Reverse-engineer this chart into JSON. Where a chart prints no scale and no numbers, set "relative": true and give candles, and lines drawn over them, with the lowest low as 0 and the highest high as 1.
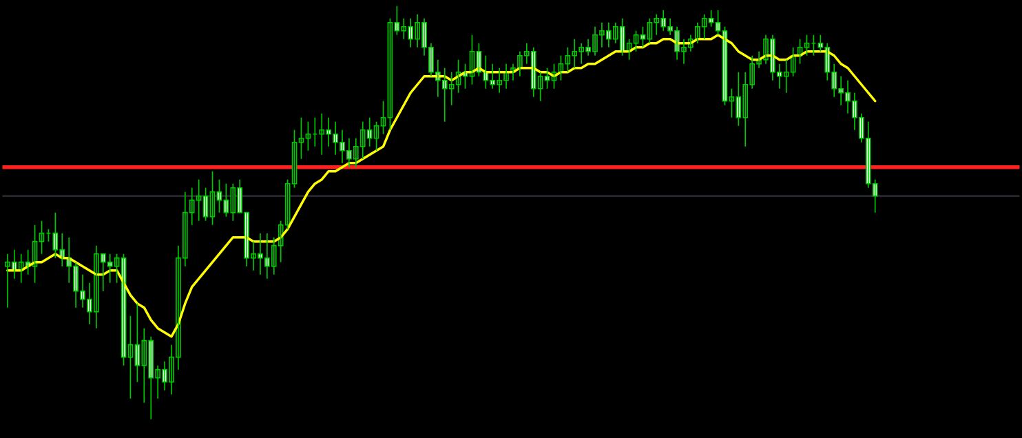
{
  "chart_data": {
    "type": "candlestick",
    "relative": true,
    "categories": [
      null,
      null,
      null,
      null,
      null,
      null,
      null,
      null,
      null,
      null,
      null,
      null,
      null,
      null,
      null,
      null,
      null,
      null,
      null,
      null,
      null,
      null,
      null,
      null,
      null,
      null,
      null,
      null,
      null,
      null,
      null,
      null,
      null,
      null,
      null,
      null,
      null,
      null,
      null,
      null,
      null,
      null,
      null,
      null,
      null,
      null,
      null,
      null,
      null,
      null,
      null,
      null,
      null,
      null,
      null,
      null,
      null,
      null,
      null,
      null,
      null,
      null,
      null,
      null,
      null,
      null,
      null,
      null,
      null,
      null,
      null,
      null,
      null,
      null,
      null,
      null,
      null,
      null,
      null,
      null,
      null,
      null,
      null,
      null,
      null,
      null,
      null,
      null,
      null,
      null,
      null,
      null,
      null,
      null,
      null,
      null,
      null,
      null,
      null,
      null,
      null,
      null,
      null,
      null,
      null,
      null,
      null,
      null,
      null,
      null,
      null,
      null,
      null,
      null,
      null,
      null,
      null,
      null,
      null,
      null,
      null,
      null,
      null,
      null,
      null,
      null,
      null,
      null
    ],
    "ohlc": [
      [
        0.37,
        0.4,
        0.27,
        0.38
      ],
      [
        0.38,
        0.41,
        0.34,
        0.36
      ],
      [
        0.36,
        0.4,
        0.33,
        0.38
      ],
      [
        0.38,
        0.41,
        0.35,
        0.37
      ],
      [
        0.37,
        0.47,
        0.33,
        0.43
      ],
      [
        0.43,
        0.48,
        0.4,
        0.45
      ],
      [
        0.45,
        0.46,
        0.43,
        0.45
      ],
      [
        0.45,
        0.5,
        0.39,
        0.41
      ],
      [
        0.41,
        0.45,
        0.37,
        0.39
      ],
      [
        0.39,
        0.44,
        0.33,
        0.37
      ],
      [
        0.37,
        0.38,
        0.27,
        0.31
      ],
      [
        0.31,
        0.35,
        0.27,
        0.29
      ],
      [
        0.29,
        0.33,
        0.23,
        0.26
      ],
      [
        0.26,
        0.42,
        0.22,
        0.4
      ],
      [
        0.4,
        0.4,
        0.31,
        0.38
      ],
      [
        0.38,
        0.4,
        0.33,
        0.37
      ],
      [
        0.37,
        0.4,
        0.33,
        0.39
      ],
      [
        0.39,
        0.4,
        0.13,
        0.15
      ],
      [
        0.15,
        0.25,
        0.05,
        0.18
      ],
      [
        0.18,
        0.28,
        0.09,
        0.13
      ],
      [
        0.13,
        0.22,
        0.04,
        0.19
      ],
      [
        0.19,
        0.2,
        0.0,
        0.1
      ],
      [
        0.1,
        0.13,
        0.05,
        0.12
      ],
      [
        0.12,
        0.14,
        0.07,
        0.09
      ],
      [
        0.09,
        0.18,
        0.06,
        0.15
      ],
      [
        0.15,
        0.42,
        0.12,
        0.39
      ],
      [
        0.39,
        0.55,
        0.37,
        0.5
      ],
      [
        0.5,
        0.56,
        0.47,
        0.53
      ],
      [
        0.53,
        0.58,
        0.48,
        0.54
      ],
      [
        0.54,
        0.56,
        0.48,
        0.49
      ],
      [
        0.49,
        0.6,
        0.47,
        0.55
      ],
      [
        0.55,
        0.58,
        0.5,
        0.53
      ],
      [
        0.53,
        0.57,
        0.49,
        0.5
      ],
      [
        0.5,
        0.57,
        0.48,
        0.56
      ],
      [
        0.56,
        0.58,
        0.5,
        0.5
      ],
      [
        0.5,
        0.5,
        0.37,
        0.39
      ],
      [
        0.39,
        0.43,
        0.36,
        0.4
      ],
      [
        0.4,
        0.45,
        0.35,
        0.39
      ],
      [
        0.39,
        0.45,
        0.34,
        0.37
      ],
      [
        0.37,
        0.44,
        0.35,
        0.42
      ],
      [
        0.42,
        0.48,
        0.38,
        0.47
      ],
      [
        0.47,
        0.58,
        0.46,
        0.57
      ],
      [
        0.57,
        0.7,
        0.56,
        0.67
      ],
      [
        0.67,
        0.73,
        0.63,
        0.68
      ],
      [
        0.68,
        0.72,
        0.65,
        0.69
      ],
      [
        0.69,
        0.73,
        0.66,
        0.69
      ],
      [
        0.69,
        0.74,
        0.64,
        0.7
      ],
      [
        0.7,
        0.73,
        0.66,
        0.69
      ],
      [
        0.69,
        0.72,
        0.64,
        0.67
      ],
      [
        0.67,
        0.7,
        0.62,
        0.65
      ],
      [
        0.65,
        0.68,
        0.61,
        0.63
      ],
      [
        0.63,
        0.68,
        0.61,
        0.66
      ],
      [
        0.66,
        0.72,
        0.63,
        0.7
      ],
      [
        0.7,
        0.73,
        0.66,
        0.68
      ],
      [
        0.68,
        0.72,
        0.65,
        0.71
      ],
      [
        0.71,
        0.77,
        0.69,
        0.73
      ],
      [
        0.73,
        0.97,
        0.7,
        0.96
      ],
      [
        0.96,
        1.0,
        0.93,
        0.94
      ],
      [
        0.94,
        0.97,
        0.92,
        0.95
      ],
      [
        0.95,
        0.97,
        0.9,
        0.92
      ],
      [
        0.92,
        0.98,
        0.9,
        0.96
      ],
      [
        0.96,
        0.97,
        0.88,
        0.9
      ],
      [
        0.9,
        0.91,
        0.83,
        0.84
      ],
      [
        0.84,
        0.87,
        0.78,
        0.82
      ],
      [
        0.82,
        0.85,
        0.72,
        0.8
      ],
      [
        0.8,
        0.84,
        0.76,
        0.81
      ],
      [
        0.81,
        0.87,
        0.79,
        0.84
      ],
      [
        0.84,
        0.86,
        0.8,
        0.83
      ],
      [
        0.83,
        0.93,
        0.81,
        0.89
      ],
      [
        0.89,
        0.91,
        0.83,
        0.84
      ],
      [
        0.84,
        0.88,
        0.8,
        0.82
      ],
      [
        0.82,
        0.86,
        0.8,
        0.81
      ],
      [
        0.81,
        0.85,
        0.79,
        0.82
      ],
      [
        0.82,
        0.86,
        0.8,
        0.84
      ],
      [
        0.84,
        0.86,
        0.82,
        0.85
      ],
      [
        0.85,
        0.89,
        0.83,
        0.88
      ],
      [
        0.88,
        0.91,
        0.86,
        0.89
      ],
      [
        0.89,
        0.9,
        0.78,
        0.8
      ],
      [
        0.8,
        0.84,
        0.77,
        0.83
      ],
      [
        0.83,
        0.85,
        0.8,
        0.82
      ],
      [
        0.82,
        0.86,
        0.8,
        0.84
      ],
      [
        0.84,
        0.88,
        0.82,
        0.86
      ],
      [
        0.86,
        0.9,
        0.84,
        0.88
      ],
      [
        0.88,
        0.92,
        0.85,
        0.89
      ],
      [
        0.89,
        0.91,
        0.86,
        0.9
      ],
      [
        0.9,
        0.92,
        0.88,
        0.89
      ],
      [
        0.89,
        0.95,
        0.88,
        0.93
      ],
      [
        0.93,
        0.96,
        0.9,
        0.94
      ],
      [
        0.94,
        0.96,
        0.9,
        0.92
      ],
      [
        0.92,
        0.96,
        0.91,
        0.95
      ],
      [
        0.95,
        0.97,
        0.88,
        0.89
      ],
      [
        0.89,
        0.92,
        0.87,
        0.91
      ],
      [
        0.91,
        0.94,
        0.89,
        0.93
      ],
      [
        0.93,
        0.95,
        0.9,
        0.92
      ],
      [
        0.92,
        0.97,
        0.91,
        0.96
      ],
      [
        0.96,
        0.98,
        0.93,
        0.97
      ],
      [
        0.97,
        0.99,
        0.94,
        0.95
      ],
      [
        0.95,
        0.97,
        0.93,
        0.94
      ],
      [
        0.94,
        0.95,
        0.87,
        0.89
      ],
      [
        0.89,
        0.92,
        0.86,
        0.9
      ],
      [
        0.9,
        0.93,
        0.89,
        0.92
      ],
      [
        0.92,
        0.96,
        0.91,
        0.95
      ],
      [
        0.95,
        0.98,
        0.92,
        0.97
      ],
      [
        0.97,
        0.99,
        0.95,
        0.96
      ],
      [
        0.96,
        0.99,
        0.93,
        0.94
      ],
      [
        0.94,
        0.95,
        0.76,
        0.77
      ],
      [
        0.77,
        0.8,
        0.73,
        0.78
      ],
      [
        0.78,
        0.84,
        0.71,
        0.73
      ],
      [
        0.73,
        0.84,
        0.66,
        0.81
      ],
      [
        0.81,
        0.88,
        0.8,
        0.86
      ],
      [
        0.86,
        0.89,
        0.85,
        0.87
      ],
      [
        0.87,
        0.93,
        0.86,
        0.92
      ],
      [
        0.92,
        0.93,
        0.82,
        0.84
      ],
      [
        0.84,
        0.86,
        0.8,
        0.83
      ],
      [
        0.83,
        0.87,
        0.79,
        0.84
      ],
      [
        0.84,
        0.9,
        0.83,
        0.88
      ],
      [
        0.88,
        0.92,
        0.86,
        0.9
      ],
      [
        0.9,
        0.93,
        0.88,
        0.91
      ],
      [
        0.91,
        0.93,
        0.88,
        0.91
      ],
      [
        0.91,
        0.93,
        0.89,
        0.9
      ],
      [
        0.9,
        0.91,
        0.82,
        0.84
      ],
      [
        0.84,
        0.86,
        0.78,
        0.8
      ],
      [
        0.8,
        0.83,
        0.76,
        0.79
      ],
      [
        0.79,
        0.82,
        0.74,
        0.77
      ],
      [
        0.77,
        0.79,
        0.7,
        0.73
      ],
      [
        0.73,
        0.74,
        0.67,
        0.68
      ],
      [
        0.68,
        0.72,
        0.56,
        0.57
      ],
      [
        0.57,
        0.58,
        0.5,
        0.54
      ]
    ],
    "series": [
      {
        "type": "line",
        "color": "#ffff00",
        "values": [
          0.36,
          0.36,
          0.36,
          0.37,
          0.38,
          0.38,
          0.39,
          0.4,
          0.39,
          0.39,
          0.38,
          0.37,
          0.36,
          0.35,
          0.35,
          0.36,
          0.36,
          0.33,
          0.3,
          0.28,
          0.27,
          0.24,
          0.22,
          0.21,
          0.2,
          0.23,
          0.28,
          0.32,
          0.34,
          0.36,
          0.38,
          0.4,
          0.42,
          0.44,
          0.44,
          0.44,
          0.43,
          0.43,
          0.43,
          0.43,
          0.44,
          0.46,
          0.49,
          0.52,
          0.55,
          0.57,
          0.58,
          0.6,
          0.6,
          0.61,
          0.62,
          0.62,
          0.63,
          0.64,
          0.65,
          0.66,
          0.7,
          0.73,
          0.76,
          0.79,
          0.81,
          0.83,
          0.83,
          0.83,
          0.83,
          0.82,
          0.83,
          0.84,
          0.84,
          0.85,
          0.84,
          0.84,
          0.84,
          0.84,
          0.84,
          0.85,
          0.85,
          0.85,
          0.84,
          0.84,
          0.83,
          0.84,
          0.84,
          0.85,
          0.85,
          0.86,
          0.86,
          0.87,
          0.88,
          0.89,
          0.89,
          0.89,
          0.9,
          0.9,
          0.91,
          0.91,
          0.92,
          0.92,
          0.91,
          0.91,
          0.91,
          0.92,
          0.92,
          0.92,
          0.93,
          0.92,
          0.91,
          0.89,
          0.88,
          0.87,
          0.87,
          0.88,
          0.88,
          0.87,
          0.87,
          0.88,
          0.88,
          0.89,
          0.89,
          0.89,
          0.89,
          0.88,
          0.86,
          0.85,
          0.83,
          0.81,
          0.79,
          0.77
        ]
      }
    ],
    "ref_lines": [
      {
        "axis": "y",
        "value": 0.61,
        "color": "#ff2020",
        "line_style": "solid"
      },
      {
        "axis": "y",
        "value": 0.54,
        "color": "#7a7a8a",
        "line_style": "solid"
      }
    ]
  }
}
